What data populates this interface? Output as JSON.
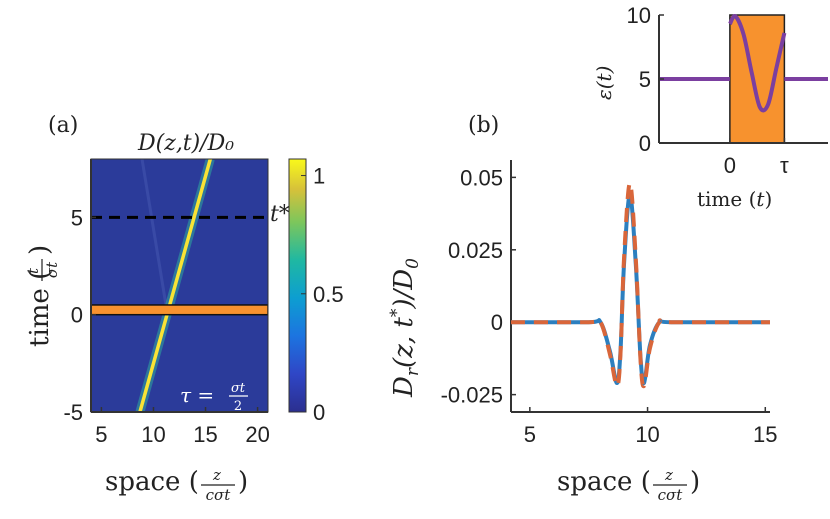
{
  "panel_a": {
    "label": "(a)",
    "title": "D(z,t)/D₀",
    "tstar_label": "t*",
    "tau_text": "τ =",
    "tau_num": "σt",
    "tau_den": "2",
    "colorbar_ticks": [
      "1",
      "0.5",
      "0"
    ],
    "colorbar_values": [
      1,
      0.5,
      0
    ],
    "colors": {
      "background": "#2b3b9a",
      "pulse": "#f9e335",
      "band": "#f8922f",
      "dash": "#000000"
    }
  },
  "panel_b": {
    "label": "(b)",
    "colors": {
      "solid": "#2c7fbf",
      "dashed": "#d9663a"
    }
  },
  "inset": {
    "colors": {
      "line": "#7b3fa0",
      "rect": "#f7922e"
    }
  },
  "chart_data": [
    {
      "type": "heatmap",
      "title": "D(z,t)/D₀",
      "xlabel": "space (z / cσt)",
      "ylabel": "time (t / σt)",
      "xlim": [
        4,
        21
      ],
      "ylim": [
        -5,
        8
      ],
      "x_ticks": [
        5,
        10,
        15,
        20
      ],
      "x_tick_labels": [
        "5",
        "10",
        "15",
        "20"
      ],
      "y_ticks": [
        -5,
        0,
        5
      ],
      "y_tick_labels": [
        "-5",
        "0",
        "5"
      ],
      "pulse_line": {
        "z_at_t0": 11.3,
        "slope_dz_dt": 0.52
      },
      "tstar": 5,
      "band_t": [
        0,
        0.5
      ],
      "colorbar_range": [
        0,
        1.07
      ]
    },
    {
      "type": "line",
      "xlabel": "space (z / cσt)",
      "ylabel": "Dr(z,t*)/D₀",
      "xlim": [
        4.2,
        15.2
      ],
      "ylim": [
        -0.031,
        0.056
      ],
      "x_ticks": [
        5,
        10,
        15
      ],
      "x_tick_labels": [
        "5",
        "10",
        "15"
      ],
      "y_ticks": [
        0.05,
        0.025,
        0,
        -0.025
      ],
      "y_tick_labels": [
        "0.05",
        "0.025",
        "0",
        "-0.025"
      ],
      "series": [
        {
          "name": "solid",
          "style": "solid",
          "x": [
            4.2,
            7.5,
            8.0,
            8.4,
            8.7,
            8.85,
            9.0,
            9.25,
            9.5,
            9.7,
            9.85,
            10.1,
            10.5,
            11.0,
            15.2
          ],
          "y": [
            0,
            0,
            0,
            -0.01,
            -0.021,
            -0.01,
            0.02,
            0.044,
            0.02,
            -0.012,
            -0.021,
            -0.008,
            0,
            0,
            0
          ]
        },
        {
          "name": "dashed",
          "style": "dashed",
          "x": [
            4.2,
            7.5,
            8.0,
            8.4,
            8.7,
            8.85,
            9.0,
            9.25,
            9.5,
            9.7,
            9.85,
            10.1,
            10.5,
            11.0,
            15.2
          ],
          "y": [
            0,
            0,
            0,
            -0.011,
            -0.022,
            -0.011,
            0.022,
            0.048,
            0.022,
            -0.013,
            -0.022,
            -0.009,
            0,
            0,
            0
          ]
        }
      ]
    },
    {
      "type": "line",
      "xlabel": "time (t)",
      "ylabel": "ε(t)",
      "ylim": [
        0,
        10
      ],
      "y_ticks": [
        10,
        5,
        0
      ],
      "y_tick_labels": [
        "10",
        "5",
        "0"
      ],
      "x_ticks": [
        0,
        1
      ],
      "x_tick_labels": [
        "0",
        "τ"
      ],
      "xlim": [
        -1.3,
        1.8
      ],
      "rect": {
        "x0": 0,
        "x1": 1,
        "y0": 0,
        "y1": 10
      },
      "series": [
        {
          "name": "epsilon",
          "x": [
            -1.3,
            0,
            0,
            0.1,
            0.25,
            0.4,
            0.55,
            0.7,
            0.85,
            1,
            1,
            1.8
          ],
          "y": [
            5,
            5,
            9.3,
            9.9,
            8.5,
            5.5,
            2.8,
            3.0,
            5.8,
            8.6,
            5,
            5
          ]
        }
      ]
    }
  ]
}
